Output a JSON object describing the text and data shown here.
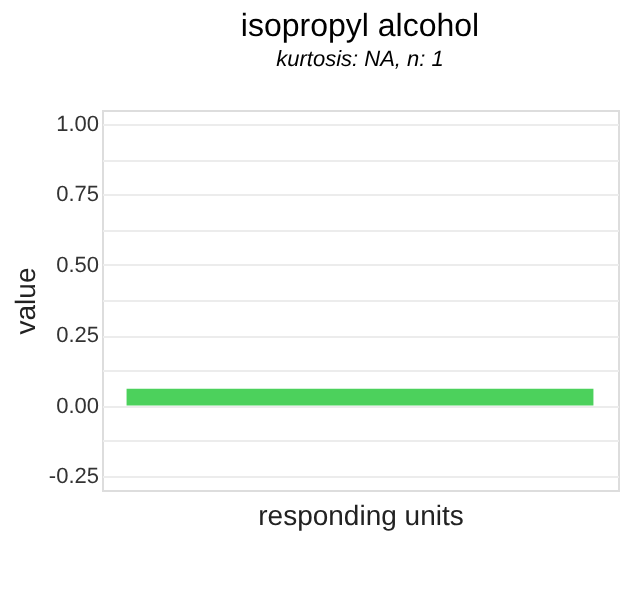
{
  "chart_data": {
    "type": "bar",
    "title": "isopropyl alcohol",
    "subtitle": "kurtosis: NA, n: 1",
    "xlabel": "responding units",
    "ylabel": "value",
    "categories": [
      null
    ],
    "values": [
      0.06
    ],
    "color": "#4cd15c",
    "ylim": [
      -0.3,
      1.05
    ],
    "yticks": [
      {
        "value": -0.25,
        "label": "-0.25"
      },
      {
        "value": -0.125,
        "label": null
      },
      {
        "value": 0,
        "label": "0.00"
      },
      {
        "value": 0.125,
        "label": null
      },
      {
        "value": 0.25,
        "label": "0.25"
      },
      {
        "value": 0.375,
        "label": null
      },
      {
        "value": 0.5,
        "label": "0.50"
      },
      {
        "value": 0.625,
        "label": null
      },
      {
        "value": 0.75,
        "label": "0.75"
      },
      {
        "value": 0.875,
        "label": null
      },
      {
        "value": 1,
        "label": "1.00"
      }
    ],
    "grid": "y"
  }
}
